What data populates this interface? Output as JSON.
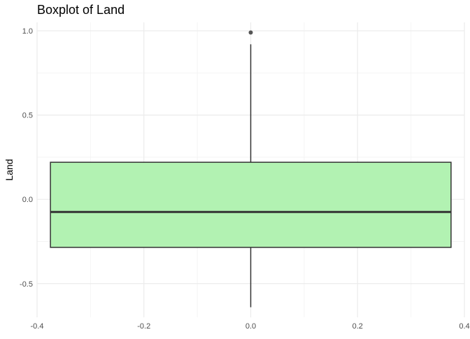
{
  "chart_data": {
    "type": "boxplot",
    "title": "Boxplot of Land",
    "xlabel": "",
    "ylabel": "Land",
    "xlim": [
      -0.4,
      0.4
    ],
    "ylim": [
      -0.7,
      1.05
    ],
    "x_ticks": [
      -0.4,
      -0.2,
      0.0,
      0.2,
      0.4
    ],
    "x_tick_labels": [
      "-0.4",
      "-0.2",
      "0.0",
      "0.2",
      "0.4"
    ],
    "y_ticks": [
      -0.5,
      0.0,
      0.5,
      1.0
    ],
    "y_tick_labels": [
      "-0.5",
      "0.0",
      "0.5",
      "1.0"
    ],
    "grid": true,
    "box": {
      "center_x": 0.0,
      "x_min": -0.375,
      "x_max": 0.375,
      "lower_whisker": -0.64,
      "q1": -0.285,
      "median": -0.075,
      "q3": 0.22,
      "upper_whisker": 0.92
    },
    "outliers": [
      0.99
    ],
    "colors": {
      "box_fill": "#b2f2b2",
      "box_stroke": "#333333",
      "outlier": "#555555",
      "grid_major": "#ebebeb",
      "grid_minor": "#f4f4f4",
      "tick_text": "#4d4d4d"
    }
  }
}
